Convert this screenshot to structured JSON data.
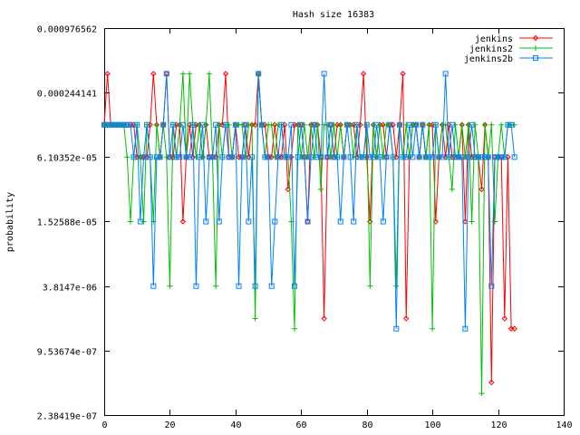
{
  "chart_data": {
    "type": "line",
    "title": "Hash size 16383",
    "xlabel": "",
    "ylabel": "probability",
    "x_scale": "linear",
    "y_scale": "log2",
    "xlim": [
      0,
      140
    ],
    "ylim": [
      2.38419e-07,
      0.000976562
    ],
    "x_ticks": [
      0,
      20,
      40,
      60,
      80,
      100,
      120,
      140
    ],
    "x_tick_labels": [
      "0",
      "20",
      "40",
      "60",
      "80",
      "100",
      "120",
      "140"
    ],
    "y_ticks": [
      2.38419e-07,
      9.53674e-07,
      3.8147e-06,
      1.52588e-05,
      6.10352e-05,
      0.000244141,
      0.000976562
    ],
    "y_tick_labels": [
      "2.38419e-07",
      "9.53674e-07",
      "3.8147e-06",
      "1.52588e-05",
      "6.10352e-05",
      "0.000244141",
      "0.000976562"
    ],
    "grid": false,
    "legend_position": "top-right",
    "series": [
      {
        "name": "jenkins",
        "color": "#ff0000",
        "marker": "diamond",
        "x": [
          0,
          1,
          2,
          3,
          4,
          5,
          6,
          7,
          8,
          9,
          10,
          11,
          12,
          13,
          14,
          15,
          16,
          17,
          18,
          19,
          20,
          21,
          22,
          23,
          24,
          25,
          26,
          27,
          28,
          29,
          30,
          31,
          32,
          33,
          34,
          35,
          36,
          37,
          38,
          39,
          40,
          41,
          42,
          43,
          44,
          45,
          46,
          47,
          48,
          49,
          50,
          51,
          52,
          53,
          54,
          55,
          56,
          57,
          58,
          59,
          60,
          61,
          62,
          63,
          64,
          65,
          66,
          67,
          68,
          69,
          70,
          71,
          72,
          73,
          74,
          75,
          76,
          77,
          78,
          79,
          80,
          81,
          82,
          83,
          84,
          85,
          86,
          87,
          88,
          89,
          90,
          91,
          92,
          93,
          94,
          95,
          96,
          97,
          98,
          99,
          100,
          101,
          102,
          103,
          104,
          105,
          106,
          107,
          108,
          109,
          110,
          111,
          112,
          113,
          114,
          115,
          116,
          117,
          118,
          119,
          120,
          121,
          122,
          123,
          124,
          125
        ],
        "y": [
          0.0001221,
          0.0003662,
          0.0001221,
          0.0001221,
          0.0001221,
          0.0001221,
          0.0001221,
          0.0001221,
          0.0001221,
          0.0001221,
          6.1e-05,
          6.1e-05,
          6.1e-05,
          6.1e-05,
          0.0001221,
          0.0003662,
          0.0001221,
          6.1e-05,
          0.0001221,
          0.0003662,
          6.1e-05,
          6.1e-05,
          0.0001221,
          0.0001221,
          1.526e-05,
          6.1e-05,
          0.0001221,
          6.1e-05,
          0.0001221,
          0.0001221,
          6.1e-05,
          0.0001221,
          6.1e-05,
          6.1e-05,
          6.1e-05,
          0.0001221,
          0.0001221,
          0.0003662,
          6.1e-05,
          6.1e-05,
          0.0001221,
          6.1e-05,
          6.1e-05,
          0.0001221,
          6.1e-05,
          0.0001221,
          0.0001221,
          0.0003662,
          0.0001221,
          0.0001221,
          6.1e-05,
          6.1e-05,
          0.0001221,
          6.1e-05,
          6.1e-05,
          0.0001221,
          3.052e-05,
          6.1e-05,
          0.0001221,
          0.0001221,
          0.0001221,
          6.1e-05,
          1.526e-05,
          0.0001221,
          0.0001221,
          0.0001221,
          6.1e-05,
          1.9e-06,
          6.1e-05,
          0.0001221,
          6.1e-05,
          0.0001221,
          0.0001221,
          6.1e-05,
          0.0001221,
          0.0001221,
          0.0001221,
          6.1e-05,
          0.0001221,
          0.0003662,
          6.1e-05,
          1.526e-05,
          0.0001221,
          6.1e-05,
          0.0001221,
          0.0001221,
          6.1e-05,
          0.0001221,
          0.0001221,
          6.1e-05,
          0.0001221,
          0.0003662,
          1.9e-06,
          6.1e-05,
          0.0001221,
          0.0001221,
          6.1e-05,
          0.0001221,
          6.1e-05,
          0.0001221,
          0.0001221,
          1.526e-05,
          6.1e-05,
          0.0001221,
          6.1e-05,
          0.0001221,
          6.1e-05,
          6.1e-05,
          6.1e-05,
          0.0001221,
          1.526e-05,
          0.0001221,
          6.1e-05,
          6.1e-05,
          6.1e-05,
          3.052e-05,
          0.0001221,
          6.1e-05,
          4.8e-07,
          6.1e-05,
          6.1e-05,
          6.1e-05,
          1.9e-06,
          6.1e-05,
          1.526e-06,
          1.526e-06
        ]
      },
      {
        "name": "jenkins2",
        "color": "#00c000",
        "marker": "plus",
        "x": [
          0,
          1,
          2,
          3,
          4,
          5,
          6,
          7,
          8,
          9,
          10,
          11,
          12,
          13,
          14,
          15,
          16,
          17,
          18,
          19,
          20,
          21,
          22,
          23,
          24,
          25,
          26,
          27,
          28,
          29,
          30,
          31,
          32,
          33,
          34,
          35,
          36,
          37,
          38,
          39,
          40,
          41,
          42,
          43,
          44,
          45,
          46,
          47,
          48,
          49,
          50,
          51,
          52,
          53,
          54,
          55,
          56,
          57,
          58,
          59,
          60,
          61,
          62,
          63,
          64,
          65,
          66,
          67,
          68,
          69,
          70,
          71,
          72,
          73,
          74,
          75,
          76,
          77,
          78,
          79,
          80,
          81,
          82,
          83,
          84,
          85,
          86,
          87,
          88,
          89,
          90,
          91,
          92,
          93,
          94,
          95,
          96,
          97,
          98,
          99,
          100,
          101,
          102,
          103,
          104,
          105,
          106,
          107,
          108,
          109,
          110,
          111,
          112,
          113,
          114,
          115,
          116,
          117,
          118,
          119,
          120,
          121,
          122,
          123,
          124,
          125
        ],
        "y": [
          0.0001221,
          0.0001221,
          0.0001221,
          0.0001221,
          0.0001221,
          0.0001221,
          0.0001221,
          6.1e-05,
          1.526e-05,
          6.1e-05,
          0.0001221,
          6.1e-05,
          1.526e-05,
          0.0001221,
          6.1e-05,
          1.526e-05,
          0.0001221,
          6.1e-05,
          0.0001221,
          6.1e-05,
          3.815e-06,
          0.0001221,
          6.1e-05,
          0.0001221,
          0.0003662,
          6.1e-05,
          0.0003662,
          0.0001221,
          6.1e-05,
          0.0001221,
          6.1e-05,
          0.0001221,
          0.0003662,
          6.1e-05,
          3.815e-06,
          0.0001221,
          6.1e-05,
          0.0001221,
          0.0001221,
          6.1e-05,
          0.0001221,
          0.0001221,
          0.0001221,
          6.1e-05,
          0.0001221,
          0.0001221,
          1.9e-06,
          0.0003662,
          0.0001221,
          6.1e-05,
          0.0001221,
          0.0001221,
          6.1e-05,
          0.0001221,
          0.0001221,
          6.1e-05,
          6.1e-05,
          1.526e-05,
          1.526e-06,
          0.0001221,
          6.1e-05,
          0.0001221,
          6.1e-05,
          0.0001221,
          6.1e-05,
          0.0001221,
          3.052e-05,
          0.0001221,
          0.0001221,
          6.1e-05,
          0.0001221,
          6.1e-05,
          0.0001221,
          6.1e-05,
          0.0001221,
          0.0001221,
          6.1e-05,
          0.0001221,
          6.1e-05,
          6.1e-05,
          0.0001221,
          3.815e-06,
          0.0001221,
          6.1e-05,
          0.0001221,
          6.1e-05,
          0.0001221,
          0.0001221,
          6.1e-05,
          3.815e-06,
          0.0001221,
          6.1e-05,
          0.0001221,
          6.1e-05,
          0.0001221,
          0.0001221,
          6.1e-05,
          0.0001221,
          6.1e-05,
          0.0001221,
          1.526e-06,
          0.0001221,
          6.1e-05,
          0.0001221,
          0.0001221,
          6.1e-05,
          3.052e-05,
          0.0001221,
          6.1e-05,
          0.0001221,
          6.1e-05,
          0.0001221,
          1.526e-05,
          0.0001221,
          6.1e-05,
          3.8e-07,
          0.0001221,
          6.1e-05,
          0.0001221,
          1.526e-05,
          6.1e-05,
          0.0001221,
          6.1e-05,
          0.0001221,
          0.0001221,
          0.0001221
        ]
      },
      {
        "name": "jenkins2b",
        "color": "#0080ff",
        "marker": "square",
        "x": [
          0,
          1,
          2,
          3,
          4,
          5,
          6,
          7,
          8,
          9,
          10,
          11,
          12,
          13,
          14,
          15,
          16,
          17,
          18,
          19,
          20,
          21,
          22,
          23,
          24,
          25,
          26,
          27,
          28,
          29,
          30,
          31,
          32,
          33,
          34,
          35,
          36,
          37,
          38,
          39,
          40,
          41,
          42,
          43,
          44,
          45,
          46,
          47,
          48,
          49,
          50,
          51,
          52,
          53,
          54,
          55,
          56,
          57,
          58,
          59,
          60,
          61,
          62,
          63,
          64,
          65,
          66,
          67,
          68,
          69,
          70,
          71,
          72,
          73,
          74,
          75,
          76,
          77,
          78,
          79,
          80,
          81,
          82,
          83,
          84,
          85,
          86,
          87,
          88,
          89,
          90,
          91,
          92,
          93,
          94,
          95,
          96,
          97,
          98,
          99,
          100,
          101,
          102,
          103,
          104,
          105,
          106,
          107,
          108,
          109,
          110,
          111,
          112,
          113,
          114,
          115,
          116,
          117,
          118,
          119,
          120,
          121,
          122,
          123,
          124,
          125
        ],
        "y": [
          0.0001221,
          0.0001221,
          0.0001221,
          0.0001221,
          0.0001221,
          0.0001221,
          0.0001221,
          0.0001221,
          0.0001221,
          6.1e-05,
          0.0001221,
          1.526e-05,
          6.1e-05,
          0.0001221,
          6.1e-05,
          3.815e-06,
          6.1e-05,
          6.1e-05,
          0.0001221,
          0.0003662,
          6.1e-05,
          0.0001221,
          6.1e-05,
          6.1e-05,
          0.0001221,
          6.1e-05,
          6.1e-05,
          0.0001221,
          3.815e-06,
          6.1e-05,
          0.0001221,
          1.526e-05,
          6.1e-05,
          6.1e-05,
          0.0001221,
          1.526e-05,
          6.1e-05,
          0.0001221,
          6.1e-05,
          6.1e-05,
          0.0001221,
          3.815e-06,
          6.1e-05,
          0.0001221,
          1.526e-05,
          6.1e-05,
          3.815e-06,
          0.0003662,
          0.0001221,
          6.1e-05,
          6.1e-05,
          3.815e-06,
          1.526e-05,
          6.1e-05,
          0.0001221,
          6.1e-05,
          6.1e-05,
          0.0001221,
          3.815e-06,
          6.1e-05,
          0.0001221,
          6.1e-05,
          1.526e-05,
          6.1e-05,
          0.0001221,
          6.1e-05,
          6.1e-05,
          0.0003662,
          6.1e-05,
          0.0001221,
          6.1e-05,
          6.1e-05,
          1.526e-05,
          6.1e-05,
          0.0001221,
          6.1e-05,
          1.526e-05,
          0.0001221,
          6.1e-05,
          6.1e-05,
          0.0001221,
          6.1e-05,
          6.1e-05,
          0.0001221,
          6.1e-05,
          1.526e-05,
          6.1e-05,
          0.0001221,
          6.1e-05,
          1.526e-06,
          0.0001221,
          6.1e-05,
          6.1e-05,
          0.0001221,
          6.1e-05,
          0.0001221,
          6.1e-05,
          0.0001221,
          6.1e-05,
          6.1e-05,
          6.1e-05,
          0.0001221,
          6.1e-05,
          6.1e-05,
          0.0003662,
          6.1e-05,
          0.0001221,
          6.1e-05,
          6.1e-05,
          6.1e-05,
          1.526e-06,
          6.1e-05,
          0.0001221,
          6.1e-05,
          6.1e-05,
          6.1e-05,
          6.1e-05,
          6.1e-05,
          3.815e-06,
          6.1e-05,
          6.1e-05,
          6.1e-05,
          6.1e-05,
          0.0001221,
          0.0001221,
          6.1e-05
        ]
      }
    ]
  }
}
